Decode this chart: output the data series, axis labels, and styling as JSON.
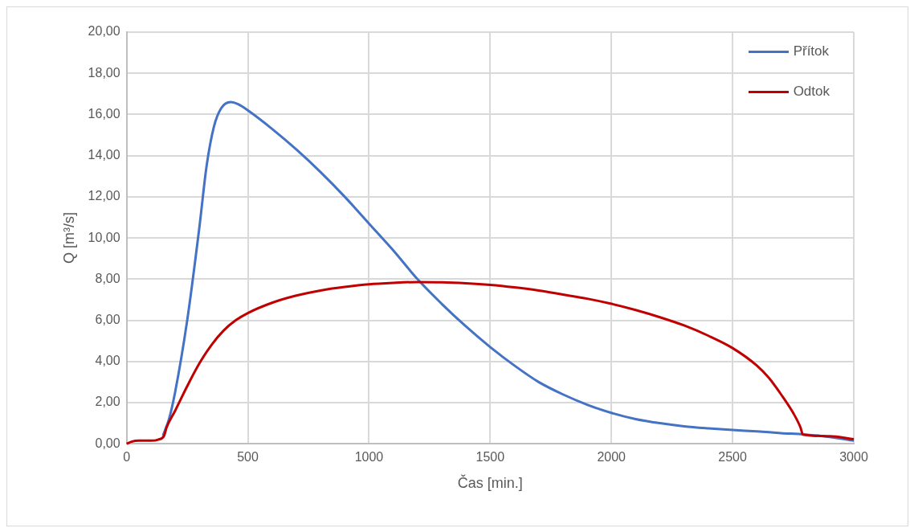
{
  "chart_data": {
    "type": "line",
    "xlabel": "Čas [min.]",
    "ylabel": "Q [m³/s]",
    "xlim": [
      0,
      3000
    ],
    "xticks": [
      0,
      500,
      1000,
      1500,
      2000,
      2500,
      3000
    ],
    "ylim": [
      0,
      20
    ],
    "yticks": [
      {
        "value": 0,
        "label": "0,00"
      },
      {
        "value": 2,
        "label": "2,00"
      },
      {
        "value": 4,
        "label": "4,00"
      },
      {
        "value": 6,
        "label": "6,00"
      },
      {
        "value": 8,
        "label": "8,00"
      },
      {
        "value": 10,
        "label": "10,00"
      },
      {
        "value": 12,
        "label": "12,00"
      },
      {
        "value": 14,
        "label": "14,00"
      },
      {
        "value": 16,
        "label": "16,00"
      },
      {
        "value": 18,
        "label": "18,00"
      },
      {
        "value": 20,
        "label": "20,00"
      }
    ],
    "grid": true,
    "legend": "top right",
    "marker": "none",
    "line_style": "solid",
    "series": [
      {
        "name": "Přítok",
        "color": "#4472c4",
        "x": [
          150,
          175,
          200,
          250,
          300,
          330,
          360,
          390,
          430,
          460,
          500,
          600,
          700,
          800,
          900,
          1000,
          1100,
          1200,
          1300,
          1400,
          1500,
          1600,
          1700,
          1800,
          1900,
          2000,
          2100,
          2200,
          2300,
          2400,
          2500,
          2600,
          2700,
          2800,
          2900,
          3000
        ],
        "values": [
          0.4,
          1.2,
          2.5,
          6,
          10.5,
          13.5,
          15.4,
          16.3,
          16.6,
          16.5,
          16.2,
          15.3,
          14.3,
          13.2,
          12.0,
          10.7,
          9.4,
          8.0,
          6.8,
          5.7,
          4.7,
          3.8,
          3.0,
          2.4,
          1.9,
          1.5,
          1.2,
          1.0,
          0.85,
          0.75,
          0.67,
          0.6,
          0.52,
          0.45,
          0.33,
          0.15
        ]
      },
      {
        "name": "Odtok",
        "color": "#c00000",
        "x": [
          0,
          20,
          50,
          100,
          130,
          155,
          165,
          200,
          250,
          300,
          350,
          400,
          450,
          500,
          600,
          700,
          800,
          900,
          1000,
          1100,
          1200,
          1300,
          1400,
          1500,
          1600,
          1700,
          1800,
          1900,
          2000,
          2100,
          2200,
          2300,
          2400,
          2500,
          2600,
          2650,
          2700,
          2750,
          2780,
          2790,
          2900,
          3000
        ],
        "values": [
          0,
          0.1,
          0.15,
          0.15,
          0.2,
          0.4,
          0.8,
          1.6,
          2.8,
          3.9,
          4.8,
          5.5,
          6.0,
          6.35,
          6.85,
          7.2,
          7.45,
          7.62,
          7.75,
          7.82,
          7.86,
          7.85,
          7.8,
          7.72,
          7.6,
          7.45,
          7.25,
          7.05,
          6.8,
          6.5,
          6.15,
          5.75,
          5.25,
          4.65,
          3.8,
          3.2,
          2.4,
          1.5,
          0.8,
          0.45,
          0.37,
          0.22
        ]
      }
    ]
  }
}
